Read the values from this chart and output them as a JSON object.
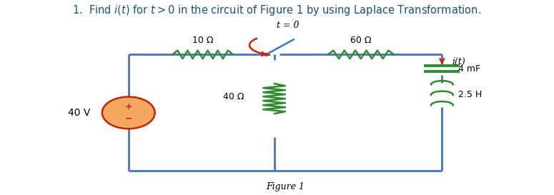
{
  "title": "1.  Find $i(t)$ for $t > 0$ in the circuit of Figure 1 by using Laplace Transformation.",
  "title_color": "#1a5276",
  "fig_label": "Figure 1",
  "wire_color": "#4472c4",
  "green": "#2e8b2e",
  "red": "#cc2200",
  "dark_gray": "#333333",
  "text_color": "#000000",
  "source_fill": "#f5a860",
  "source_edge": "#cc2200",
  "R1_label": "10 Ω",
  "R2_label": "60 Ω",
  "R3_label": "40 Ω",
  "C_label": "4 mF",
  "L_label": "2.5 H",
  "V_label": "40 V",
  "i_label": "i(t)",
  "t0_label": "t = 0",
  "L": 0.23,
  "R": 0.8,
  "T": 0.72,
  "B": 0.1,
  "MX": 0.495
}
